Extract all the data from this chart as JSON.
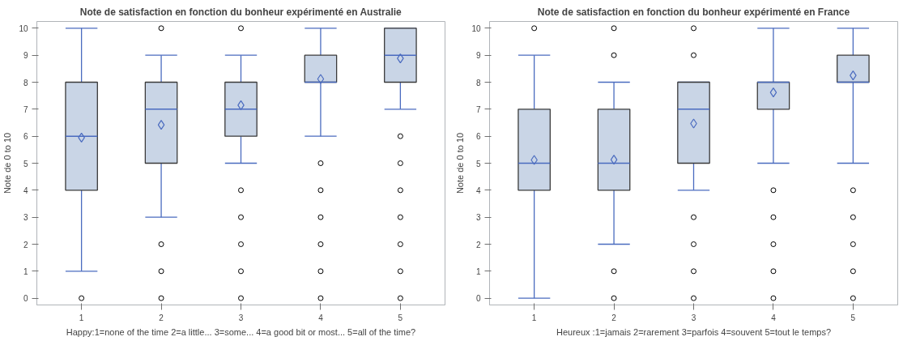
{
  "chart_data": [
    {
      "type": "box",
      "title": "Note de satisfaction en fonction du bonheur expérimenté en Australie",
      "xlabel": "Happy:1=none of the time 2=a little... 3=some... 4=a good bit or most... 5=all of the time?",
      "ylabel": "Note de 0 to 10",
      "categories": [
        "1",
        "2",
        "3",
        "4",
        "5"
      ],
      "ylim": [
        -0.25,
        10.25
      ],
      "yticks": [
        0,
        1,
        2,
        3,
        4,
        5,
        6,
        7,
        8,
        9,
        10
      ],
      "grid": false,
      "series": [
        {
          "color": "#c9d5e6",
          "boxes": [
            {
              "low": 1,
              "q1": 4,
              "median": 6,
              "q3": 8,
              "high": 10,
              "mean": 5.95,
              "outliers": [
                0
              ]
            },
            {
              "low": 3,
              "q1": 5,
              "median": 7,
              "q3": 8,
              "high": 9,
              "mean": 6.42,
              "outliers": [
                0,
                1,
                2,
                10
              ]
            },
            {
              "low": 5,
              "q1": 6,
              "median": 7,
              "q3": 8,
              "high": 9,
              "mean": 7.15,
              "outliers": [
                0,
                1,
                2,
                3,
                4,
                10
              ]
            },
            {
              "low": 6,
              "q1": 8,
              "median": 8,
              "q3": 9,
              "high": 10,
              "mean": 8.12,
              "outliers": [
                0,
                1,
                2,
                3,
                4,
                5
              ]
            },
            {
              "low": 7,
              "q1": 8,
              "median": 9,
              "q3": 10,
              "high": 10,
              "mean": 8.88,
              "outliers": [
                0,
                1,
                2,
                3,
                4,
                5,
                6
              ]
            }
          ]
        }
      ]
    },
    {
      "type": "box",
      "title": "Note de satisfaction en fonction du bonheur expérimenté en France",
      "xlabel": "Heureux :1=jamais 2=rarement 3=parfois 4=souvent 5=tout le temps?",
      "ylabel": "Note de 0 to 10",
      "categories": [
        "1",
        "2",
        "3",
        "4",
        "5"
      ],
      "ylim": [
        -0.25,
        10.25
      ],
      "yticks": [
        0,
        1,
        2,
        3,
        4,
        5,
        6,
        7,
        8,
        9,
        10
      ],
      "grid": false,
      "series": [
        {
          "color": "#c9d5e6",
          "boxes": [
            {
              "low": 0,
              "q1": 4,
              "median": 5,
              "q3": 7,
              "high": 9,
              "mean": 5.12,
              "outliers": [
                10
              ]
            },
            {
              "low": 2,
              "q1": 4,
              "median": 5,
              "q3": 7,
              "high": 8,
              "mean": 5.13,
              "outliers": [
                0,
                1,
                9,
                10
              ]
            },
            {
              "low": 4,
              "q1": 5,
              "median": 7,
              "q3": 8,
              "high": 8,
              "mean": 6.47,
              "outliers": [
                0,
                1,
                2,
                3,
                9,
                10
              ]
            },
            {
              "low": 5,
              "q1": 7,
              "median": 8,
              "q3": 8,
              "high": 10,
              "mean": 7.62,
              "outliers": [
                0,
                1,
                2,
                3,
                4
              ]
            },
            {
              "low": 5,
              "q1": 8,
              "median": 8,
              "q3": 9,
              "high": 10,
              "mean": 8.25,
              "outliers": [
                0,
                1,
                2,
                3,
                4
              ]
            }
          ]
        }
      ]
    }
  ]
}
